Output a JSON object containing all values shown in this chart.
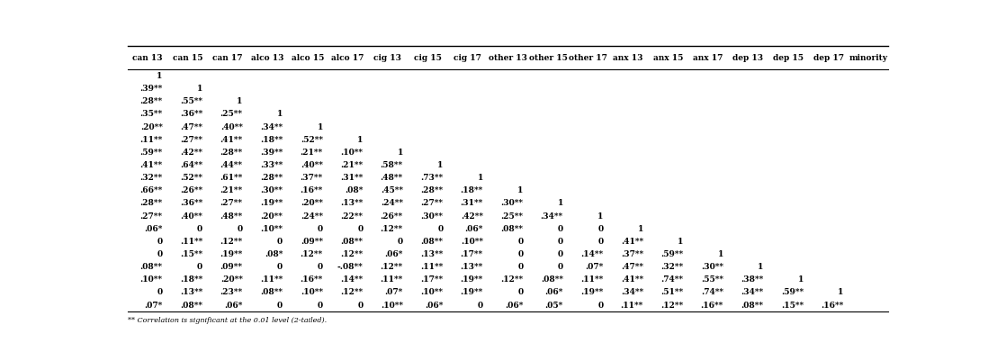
{
  "headers": [
    "can 13",
    "can 15",
    "can 17",
    "alco 13",
    "alco 15",
    "alco 17",
    "cig 13",
    "cig 15",
    "cig 17",
    "other 13",
    "other 15",
    "other 17",
    "anx 13",
    "anx 15",
    "anx 17",
    "dep 13",
    "dep 15",
    "dep 17",
    "minority"
  ],
  "rows": [
    [
      "1",
      "",
      "",
      "",
      "",
      "",
      "",
      "",
      "",
      "",
      "",
      "",
      "",
      "",
      "",
      "",
      "",
      "",
      ""
    ],
    [
      ".39**",
      "1",
      "",
      "",
      "",
      "",
      "",
      "",
      "",
      "",
      "",
      "",
      "",
      "",
      "",
      "",
      "",
      "",
      ""
    ],
    [
      ".28**",
      ".55**",
      "1",
      "",
      "",
      "",
      "",
      "",
      "",
      "",
      "",
      "",
      "",
      "",
      "",
      "",
      "",
      "",
      ""
    ],
    [
      ".35**",
      ".36**",
      ".25**",
      "1",
      "",
      "",
      "",
      "",
      "",
      "",
      "",
      "",
      "",
      "",
      "",
      "",
      "",
      "",
      ""
    ],
    [
      ".20**",
      ".47**",
      ".40**",
      ".34**",
      "1",
      "",
      "",
      "",
      "",
      "",
      "",
      "",
      "",
      "",
      "",
      "",
      "",
      "",
      ""
    ],
    [
      ".11**",
      ".27**",
      ".41**",
      ".18**",
      ".52**",
      "1",
      "",
      "",
      "",
      "",
      "",
      "",
      "",
      "",
      "",
      "",
      "",
      "",
      ""
    ],
    [
      ".59**",
      ".42**",
      ".28**",
      ".39**",
      ".21**",
      ".10**",
      "1",
      "",
      "",
      "",
      "",
      "",
      "",
      "",
      "",
      "",
      "",
      "",
      ""
    ],
    [
      ".41**",
      ".64**",
      ".44**",
      ".33**",
      ".40**",
      ".21**",
      ".58**",
      "1",
      "",
      "",
      "",
      "",
      "",
      "",
      "",
      "",
      "",
      "",
      ""
    ],
    [
      ".32**",
      ".52**",
      ".61**",
      ".28**",
      ".37**",
      ".31**",
      ".48**",
      ".73**",
      "1",
      "",
      "",
      "",
      "",
      "",
      "",
      "",
      "",
      "",
      ""
    ],
    [
      ".66**",
      ".26**",
      ".21**",
      ".30**",
      ".16**",
      ".08*",
      ".45**",
      ".28**",
      ".18**",
      "1",
      "",
      "",
      "",
      "",
      "",
      "",
      "",
      "",
      ""
    ],
    [
      ".28**",
      ".36**",
      ".27**",
      ".19**",
      ".20**",
      ".13**",
      ".24**",
      ".27**",
      ".31**",
      ".30**",
      "1",
      "",
      "",
      "",
      "",
      "",
      "",
      "",
      ""
    ],
    [
      ".27**",
      ".40**",
      ".48**",
      ".20**",
      ".24**",
      ".22**",
      ".26**",
      ".30**",
      ".42**",
      ".25**",
      ".34**",
      "1",
      "",
      "",
      "",
      "",
      "",
      "",
      ""
    ],
    [
      ".06*",
      "0",
      "0",
      ".10**",
      "0",
      "0",
      ".12**",
      "0",
      ".06*",
      ".08**",
      "0",
      "0",
      "1",
      "",
      "",
      "",
      "",
      "",
      ""
    ],
    [
      "0",
      ".11**",
      ".12**",
      "0",
      ".09**",
      ".08**",
      "0",
      ".08**",
      ".10**",
      "0",
      "0",
      "0",
      ".41**",
      "1",
      "",
      "",
      "",
      "",
      ""
    ],
    [
      "0",
      ".15**",
      ".19**",
      ".08*",
      ".12**",
      ".12**",
      ".06*",
      ".13**",
      ".17**",
      "0",
      "0",
      ".14**",
      ".37**",
      ".59**",
      "1",
      "",
      "",
      "",
      ""
    ],
    [
      ".08**",
      "0",
      ".09**",
      "0",
      "0",
      "-.08**",
      ".12**",
      ".11**",
      ".13**",
      "0",
      "0",
      ".07*",
      ".47**",
      ".32**",
      ".30**",
      "1",
      "",
      "",
      ""
    ],
    [
      ".10**",
      ".18**",
      ".20**",
      ".11**",
      ".16**",
      ".14**",
      ".11**",
      ".17**",
      ".19**",
      ".12**",
      ".08**",
      ".11**",
      ".41**",
      ".74**",
      ".55**",
      ".38**",
      "1",
      "",
      ""
    ],
    [
      "0",
      ".13**",
      ".23**",
      ".08**",
      ".10**",
      ".12**",
      ".07*",
      ".10**",
      ".19**",
      "0",
      ".06*",
      ".19**",
      ".34**",
      ".51**",
      ".74**",
      ".34**",
      ".59**",
      "1",
      ""
    ],
    [
      ".07*",
      ".08**",
      ".06*",
      "0",
      "0",
      "0",
      ".10**",
      ".06*",
      "0",
      ".06*",
      ".05*",
      "0",
      ".11**",
      ".12**",
      ".16**",
      ".08**",
      ".15**",
      ".16**",
      ""
    ]
  ],
  "footnote": "** Correlation is significant at the 0.01 level (2-tailed).",
  "background_color": "#ffffff",
  "text_color": "#000000",
  "cell_font_size": 6.5,
  "header_font_size": 6.5
}
